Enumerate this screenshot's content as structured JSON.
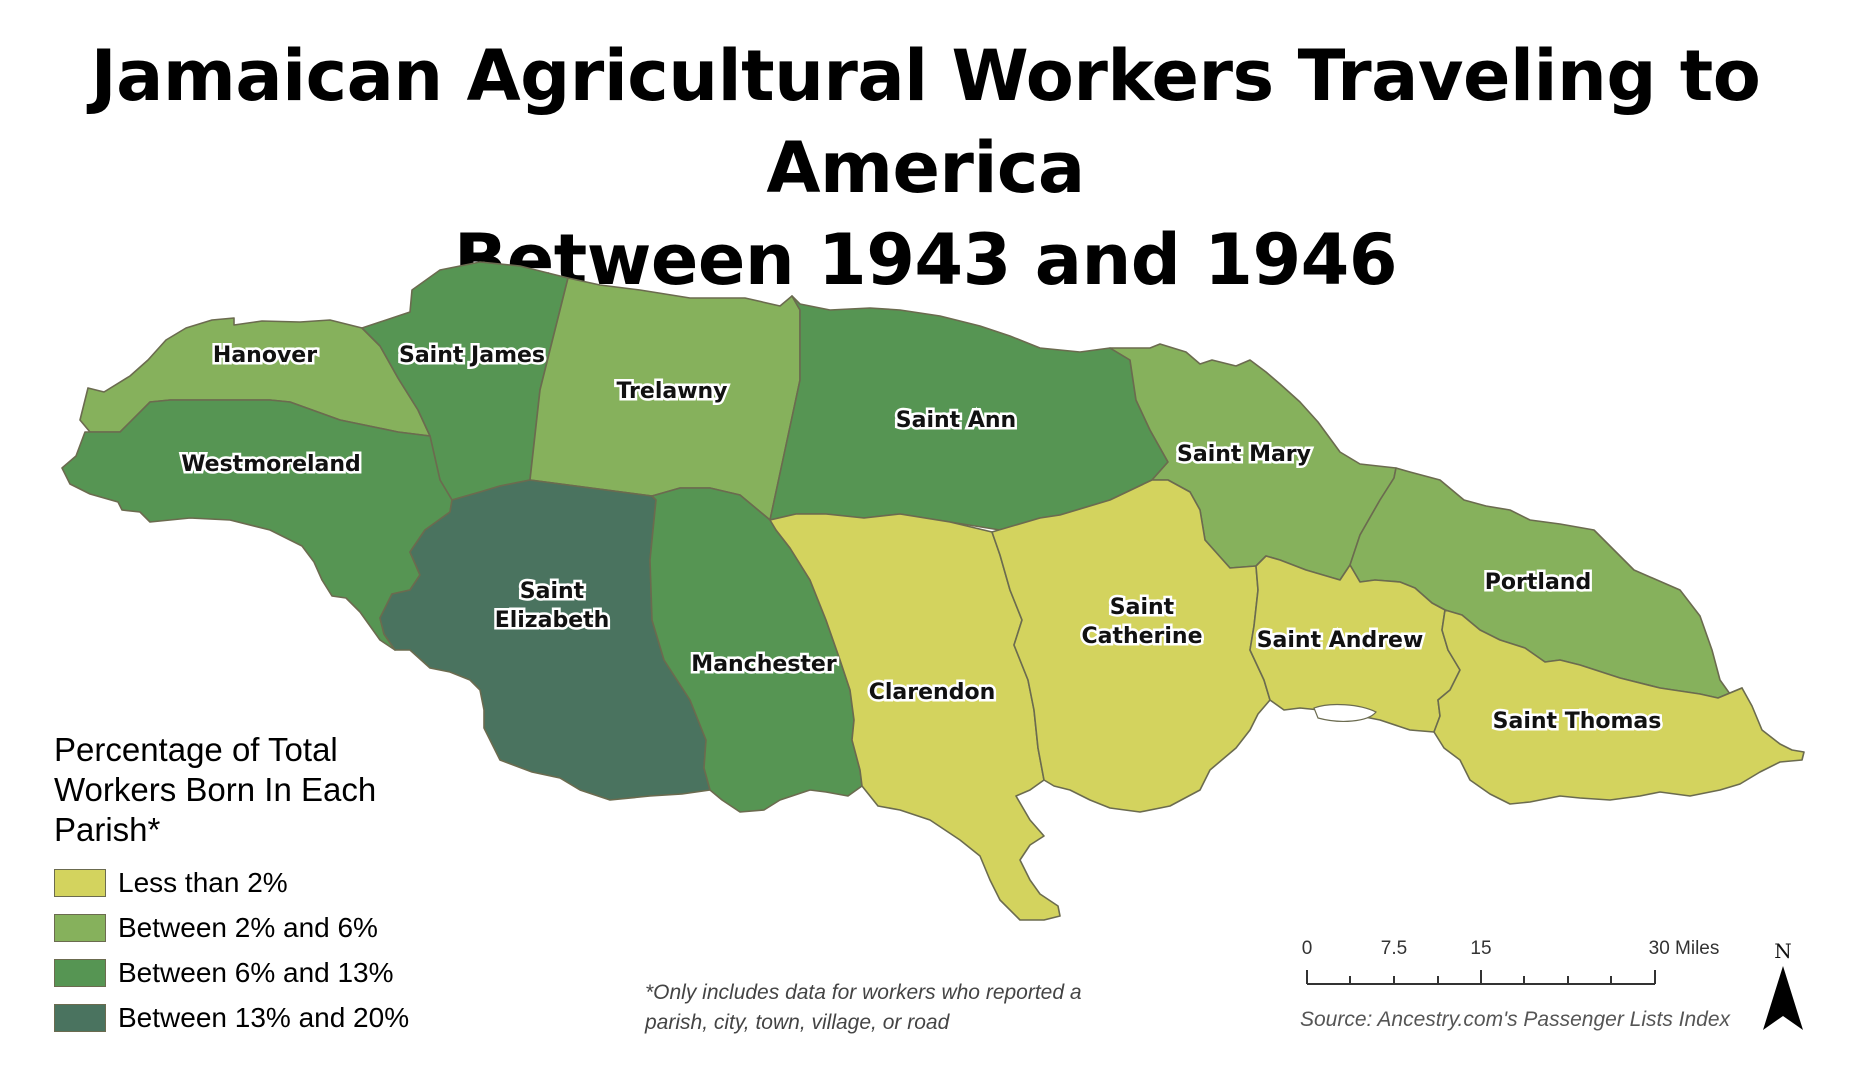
{
  "title": {
    "line1": "Jamaican Agricultural Workers Traveling to America",
    "line2": "Between 1943 and 1946"
  },
  "colors": {
    "less_than_2": "#d3d35e",
    "between_2_6": "#86b15c",
    "between_6_13": "#569553",
    "between_13_20": "#4a735f",
    "border": "#6b6b4f"
  },
  "parishes": [
    {
      "name": "Hanover",
      "label_lines": [
        "Hanover"
      ],
      "category": "between_2_6"
    },
    {
      "name": "Saint James",
      "label_lines": [
        "Saint James"
      ],
      "category": "between_6_13"
    },
    {
      "name": "Trelawny",
      "label_lines": [
        "Trelawny"
      ],
      "category": "between_2_6"
    },
    {
      "name": "Saint Ann",
      "label_lines": [
        "Saint Ann"
      ],
      "category": "between_6_13"
    },
    {
      "name": "Saint Mary",
      "label_lines": [
        "Saint Mary"
      ],
      "category": "between_2_6"
    },
    {
      "name": "Portland",
      "label_lines": [
        "Portland"
      ],
      "category": "between_2_6"
    },
    {
      "name": "Westmoreland",
      "label_lines": [
        "Westmoreland"
      ],
      "category": "between_6_13"
    },
    {
      "name": "Saint Elizabeth",
      "label_lines": [
        "Saint",
        "Elizabeth"
      ],
      "category": "between_13_20"
    },
    {
      "name": "Manchester",
      "label_lines": [
        "Manchester"
      ],
      "category": "between_6_13"
    },
    {
      "name": "Clarendon",
      "label_lines": [
        "Clarendon"
      ],
      "category": "less_than_2"
    },
    {
      "name": "Saint Catherine",
      "label_lines": [
        "Saint",
        "Catherine"
      ],
      "category": "less_than_2"
    },
    {
      "name": "Saint Andrew",
      "label_lines": [
        "Saint Andrew"
      ],
      "category": "less_than_2"
    },
    {
      "name": "Saint Thomas",
      "label_lines": [
        "Saint Thomas"
      ],
      "category": "less_than_2"
    }
  ],
  "legend": {
    "title": "Percentage of Total Workers Born In Each Parish*",
    "items": [
      {
        "label": "Less than 2%",
        "category": "less_than_2"
      },
      {
        "label": "Between 2% and 6%",
        "category": "between_2_6"
      },
      {
        "label": "Between 6% and 13%",
        "category": "between_6_13"
      },
      {
        "label": "Between 13% and 20%",
        "category": "between_13_20"
      }
    ]
  },
  "footnote": "*Only includes data for workers who reported a parish, city, town, village, or road",
  "scale": {
    "labels": [
      "0",
      "7.5",
      "15",
      "30 Miles"
    ]
  },
  "north_label": "N",
  "source": "Source: Ancestry.com's Passenger Lists Index"
}
